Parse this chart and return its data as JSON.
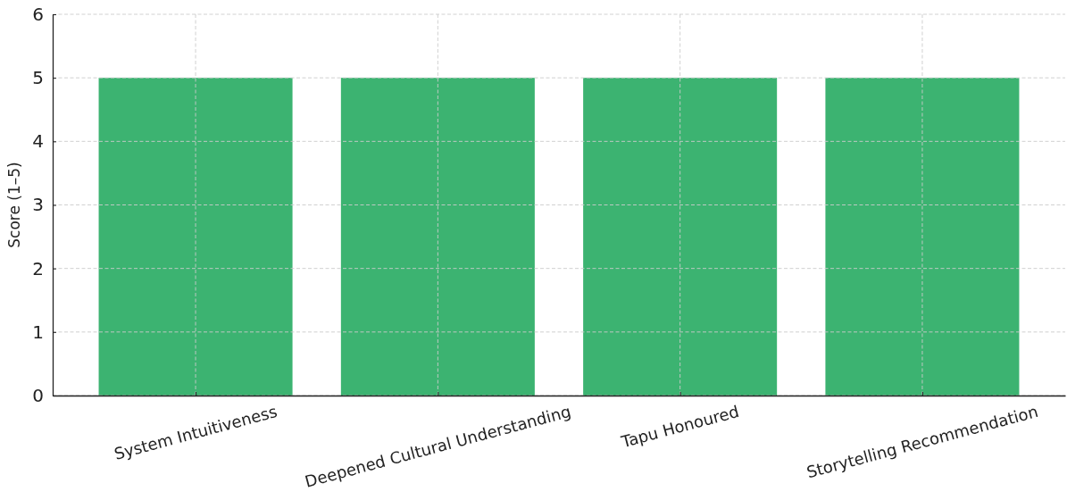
{
  "chart_data": {
    "type": "bar",
    "categories": [
      "System Intuitiveness",
      "Deepened Cultural Understanding",
      "Tapu Honoured",
      "Storytelling Recommendation"
    ],
    "values": [
      5,
      5,
      5,
      5
    ],
    "color": "#3cb371",
    "ylabel": "Score (1–5)",
    "ylim": [
      0,
      6
    ],
    "yticks": [
      0,
      1,
      2,
      3,
      4,
      5,
      6
    ],
    "grid": true
  }
}
